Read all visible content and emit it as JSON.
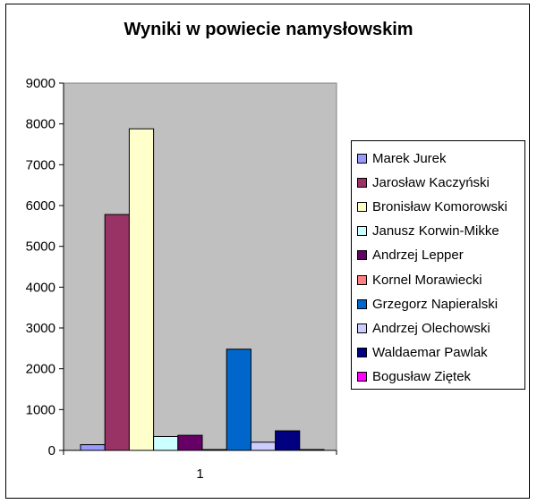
{
  "chart_data": {
    "type": "bar",
    "title": "Wyniki w powiecie namysłowskim",
    "categories": [
      "1"
    ],
    "ylim": [
      0,
      9000
    ],
    "yticks": [
      "0",
      "1000",
      "2000",
      "3000",
      "4000",
      "5000",
      "6000",
      "7000",
      "8000",
      "9000"
    ],
    "grid": false,
    "legend_position": "right",
    "plot_background": "#c0c0c0",
    "series": [
      {
        "name": "Marek Jurek",
        "values": [
          140
        ],
        "color": "#9999ff"
      },
      {
        "name": "Jarosław Kaczyński",
        "values": [
          5780
        ],
        "color": "#993366"
      },
      {
        "name": "Bronisław Komorowski",
        "values": [
          7880
        ],
        "color": "#ffffcc"
      },
      {
        "name": "Janusz Korwin-Mikke",
        "values": [
          340
        ],
        "color": "#ccffff"
      },
      {
        "name": "Andrzej Lepper",
        "values": [
          370
        ],
        "color": "#660066"
      },
      {
        "name": "Kornel Morawiecki",
        "values": [
          20
        ],
        "color": "#ff8080"
      },
      {
        "name": "Grzegorz Napieralski",
        "values": [
          2480
        ],
        "color": "#0066cc"
      },
      {
        "name": "Andrzej Olechowski",
        "values": [
          200
        ],
        "color": "#ccccff"
      },
      {
        "name": "Waldaemar Pawlak",
        "values": [
          480
        ],
        "color": "#000080"
      },
      {
        "name": "Bogusław Ziętek",
        "values": [
          20
        ],
        "color": "#ff00ff"
      }
    ]
  }
}
